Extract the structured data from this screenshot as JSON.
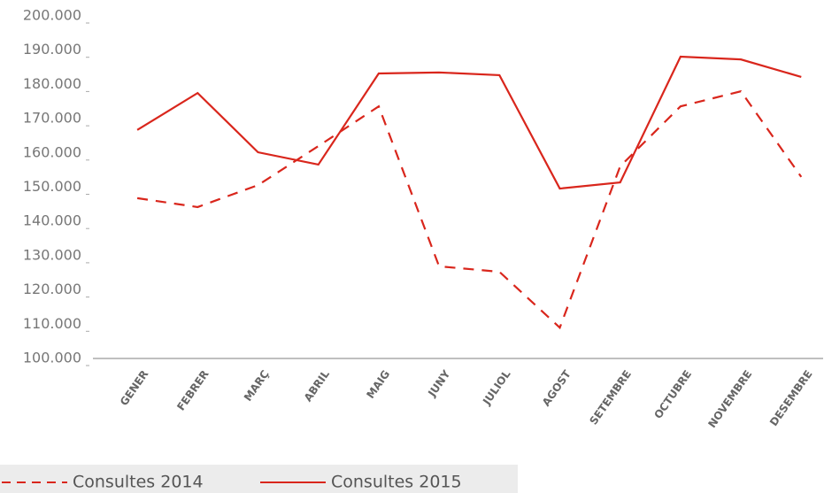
{
  "chart_data": {
    "type": "line",
    "categories": [
      "GENER",
      "FEBRER",
      "MARÇ",
      "ABRIL",
      "MAIG",
      "JUNY",
      "JULIOL",
      "AGOST",
      "SETEMBRE",
      "OCTUBRE",
      "NOVEMBRE",
      "DESEMBRE"
    ],
    "series": [
      {
        "name": "Consultes 2014",
        "color": "#d9261c",
        "style": "dashed",
        "values": [
          146800,
          144200,
          150600,
          162000,
          173600,
          126900,
          125300,
          109000,
          156100,
          173600,
          178000,
          153000
        ]
      },
      {
        "name": "Consultes 2015",
        "color": "#d9261c",
        "style": "solid",
        "values": [
          166700,
          177500,
          160200,
          156600,
          183200,
          183500,
          182700,
          149600,
          151400,
          188100,
          187300,
          182200
        ]
      }
    ],
    "ylim": [
      100000,
      200000
    ],
    "yticks": [
      {
        "value": 100000,
        "label": "100.000"
      },
      {
        "value": 110000,
        "label": "110.000"
      },
      {
        "value": 120000,
        "label": "120.000"
      },
      {
        "value": 130000,
        "label": "130.000"
      },
      {
        "value": 140000,
        "label": "140.000"
      },
      {
        "value": 150000,
        "label": "150.000"
      },
      {
        "value": 160000,
        "label": "160.000"
      },
      {
        "value": 170000,
        "label": "170.000"
      },
      {
        "value": 180000,
        "label": "180.000"
      },
      {
        "value": 190000,
        "label": "190.000"
      },
      {
        "value": 200000,
        "label": "200.000"
      }
    ],
    "grid": false,
    "legend": "bottom-left"
  }
}
